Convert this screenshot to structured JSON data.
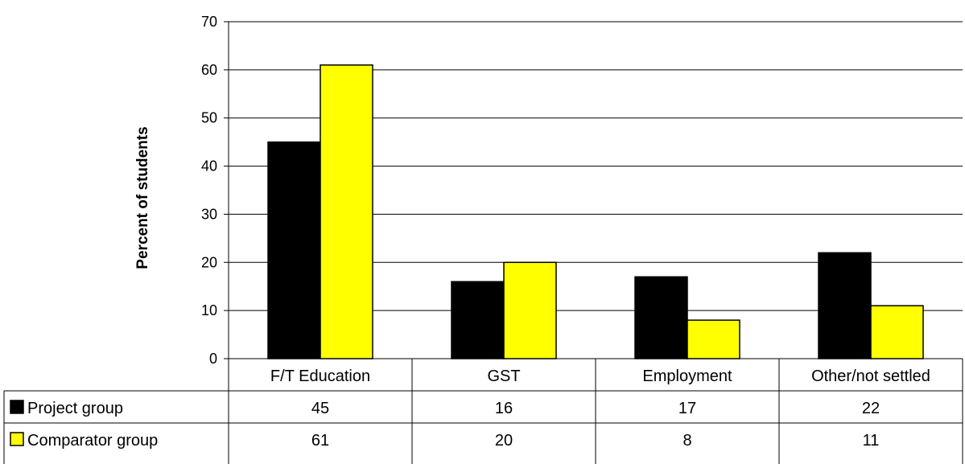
{
  "chart_data": {
    "type": "bar",
    "title": "",
    "xlabel": "",
    "ylabel": "Percent of students",
    "ylim": [
      0,
      70
    ],
    "yticks": [
      0,
      10,
      20,
      30,
      40,
      50,
      60,
      70
    ],
    "grid": true,
    "legend_placement": "data-table-left",
    "categories": [
      "F/T Education",
      "GST",
      "Employment",
      "Other/not settled"
    ],
    "series": [
      {
        "name": "Project group",
        "color": "#000000",
        "values": [
          45,
          16,
          17,
          22
        ]
      },
      {
        "name": "Comparator group",
        "color": "#ffff00",
        "values": [
          61,
          20,
          8,
          11
        ]
      }
    ]
  }
}
